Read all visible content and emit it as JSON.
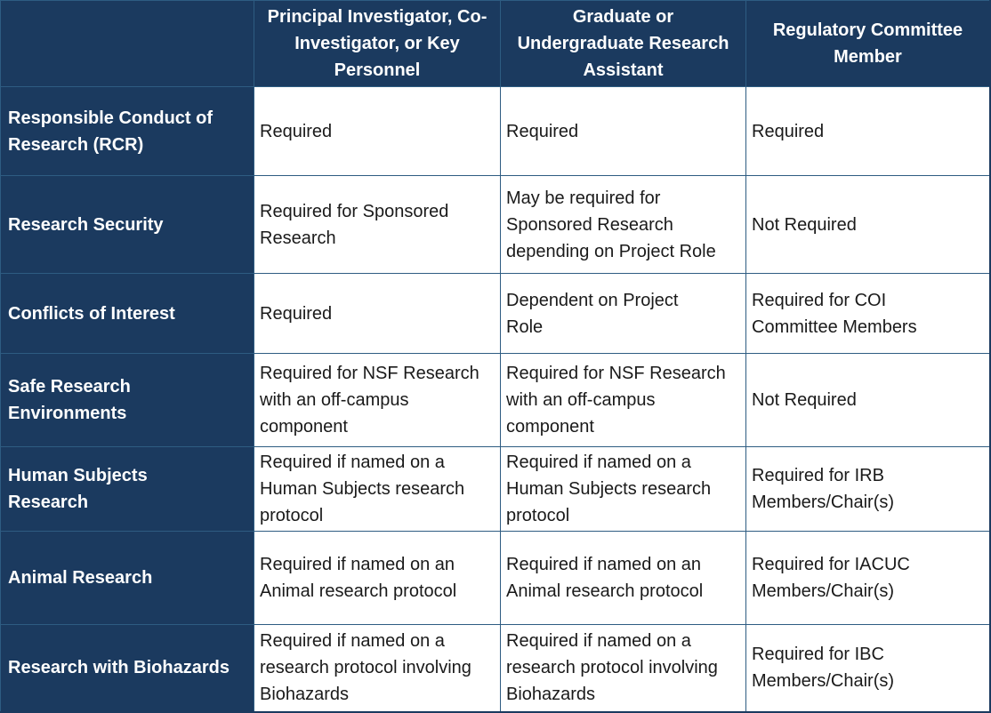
{
  "table": {
    "colors": {
      "navy_fill": "#1B3A5F",
      "border": "#2E5C82",
      "header_text": "#FFFFFF",
      "body_text": "#1A1A1A",
      "body_bg": "#FFFFFF"
    },
    "columns": [
      {
        "label": ""
      },
      {
        "label": "Principal Investigator, Co-\nInvestigator, or Key\nPersonnel"
      },
      {
        "label": "Graduate or\nUndergraduate Research\nAssistant"
      },
      {
        "label": "Regulatory Committee\nMember"
      }
    ],
    "rows": [
      {
        "label": "Responsible Conduct of\nResearch (RCR)",
        "cells": [
          "Required",
          "Required",
          "Required"
        ]
      },
      {
        "label": "Research Security",
        "cells": [
          "Required for Sponsored\nResearch",
          "May be required for\nSponsored Research\ndepending on Project Role",
          "Not Required"
        ]
      },
      {
        "label": "Conflicts of Interest",
        "cells": [
          "Required",
          "Dependent on Project\nRole",
          "Required for COI\nCommittee Members"
        ]
      },
      {
        "label": "Safe Research\nEnvironments",
        "cells": [
          "Required for NSF Research\nwith an off-campus\ncomponent",
          "Required for NSF Research\nwith an off-campus\ncomponent",
          "Not Required"
        ]
      },
      {
        "label": "Human Subjects\nResearch",
        "cells": [
          "Required if named on a\nHuman Subjects research\nprotocol",
          "Required if named on a\nHuman Subjects research\nprotocol",
          "Required for IRB\nMembers/Chair(s)"
        ]
      },
      {
        "label": "Animal Research",
        "cells": [
          "Required if named on an\nAnimal research protocol",
          "Required if named on an\nAnimal research protocol",
          "Required for IACUC\nMembers/Chair(s)"
        ]
      },
      {
        "label": "Research with Biohazards",
        "cells": [
          "Required if named on a\nresearch protocol involving\nBiohazards",
          "Required if named on a\nresearch protocol involving\nBiohazards",
          "Required for IBC\nMembers/Chair(s)"
        ]
      }
    ]
  }
}
